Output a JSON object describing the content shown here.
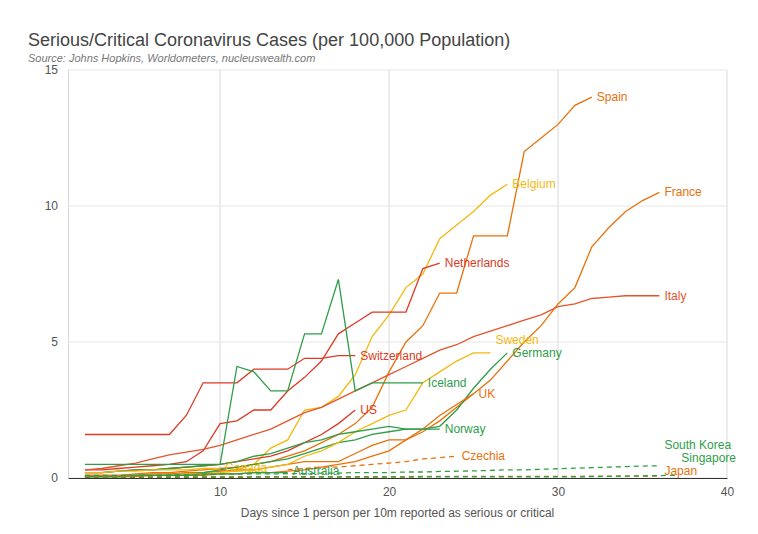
{
  "chart_data": {
    "type": "line",
    "title": "Serious/Critical Coronavirus Cases (per 100,000 Population)",
    "subtitle": "Source: Johns Hopkins, Worldometers, nucleuswealth.com",
    "x_label": "Days since 1 person per 10m reported as serious or critical",
    "x": [
      2,
      3,
      4,
      5,
      6,
      7,
      8,
      9,
      10,
      11,
      12,
      13,
      14,
      15,
      16,
      17,
      18,
      19,
      20,
      21,
      22,
      23,
      24,
      25,
      26,
      27,
      28,
      29,
      30,
      31,
      32,
      33,
      34,
      35,
      36,
      37
    ],
    "xlim": [
      1,
      40
    ],
    "xticks": [
      10,
      20,
      30,
      40
    ],
    "ylim": [
      0,
      15
    ],
    "yticks": [
      0,
      5,
      10,
      15
    ],
    "grid": true,
    "series": [
      {
        "name": "Spain",
        "color": "#e8710a",
        "line_style": "solid",
        "values": [
          0.1,
          0.1,
          0.1,
          0.15,
          0.2,
          0.2,
          0.25,
          0.3,
          0.35,
          0.4,
          0.5,
          0.6,
          0.8,
          1.0,
          1.3,
          1.6,
          2.0,
          2.6,
          3.9,
          5.0,
          5.6,
          6.8,
          6.8,
          8.9,
          8.9,
          8.9,
          12.0,
          12.5,
          13.0,
          13.7,
          14.0,
          null,
          null,
          null,
          null,
          null
        ]
      },
      {
        "name": "Belgium",
        "color": "#f2b90f",
        "line_style": "solid",
        "values": [
          0.05,
          0.05,
          0.05,
          0.1,
          0.1,
          0.1,
          0.15,
          0.2,
          0.25,
          0.3,
          0.5,
          1.1,
          1.4,
          2.5,
          2.6,
          3.0,
          3.8,
          5.2,
          6.0,
          7.0,
          7.5,
          8.8,
          9.3,
          9.8,
          10.4,
          10.8,
          null,
          null,
          null,
          null,
          null,
          null,
          null,
          null,
          null,
          null
        ]
      },
      {
        "name": "France",
        "color": "#e8710a",
        "line_style": "solid",
        "values": [
          0.1,
          0.1,
          0.1,
          0.1,
          0.15,
          0.15,
          0.2,
          0.2,
          0.25,
          0.3,
          0.3,
          0.4,
          0.5,
          0.6,
          0.6,
          0.6,
          0.9,
          1.2,
          1.4,
          1.4,
          1.7,
          2.1,
          2.6,
          3.1,
          3.6,
          4.3,
          5.0,
          5.6,
          6.4,
          7.0,
          8.5,
          9.2,
          9.8,
          10.2,
          10.5,
          null
        ]
      },
      {
        "name": "Netherlands",
        "color": "#dc3b26",
        "line_style": "solid",
        "values": [
          0.3,
          0.3,
          0.35,
          0.4,
          0.45,
          0.5,
          0.6,
          1.0,
          2.0,
          2.1,
          2.5,
          2.5,
          3.2,
          3.7,
          4.3,
          5.3,
          5.7,
          6.1,
          6.1,
          6.1,
          7.7,
          7.9,
          null,
          null,
          null,
          null,
          null,
          null,
          null,
          null,
          null,
          null,
          null,
          null,
          null,
          null
        ]
      },
      {
        "name": "Italy",
        "color": "#e4552b",
        "line_style": "solid",
        "values": [
          0.3,
          0.35,
          0.45,
          0.55,
          0.7,
          0.85,
          0.95,
          1.05,
          1.2,
          1.4,
          1.6,
          1.8,
          2.1,
          2.4,
          2.6,
          2.9,
          3.2,
          3.5,
          3.8,
          4.1,
          4.4,
          4.7,
          4.9,
          5.2,
          5.4,
          5.6,
          5.8,
          6.0,
          6.3,
          6.4,
          6.6,
          6.65,
          6.7,
          6.7,
          6.7,
          null
        ]
      },
      {
        "name": "Germany",
        "color": "#2e9e48",
        "line_style": "solid",
        "values": [
          0.05,
          0.05,
          0.05,
          0.1,
          0.1,
          0.1,
          0.15,
          0.2,
          0.3,
          0.4,
          0.5,
          0.6,
          0.7,
          0.9,
          1.1,
          1.3,
          1.4,
          1.6,
          1.7,
          1.8,
          1.8,
          1.9,
          2.5,
          3.3,
          4.0,
          4.6,
          null,
          null,
          null,
          null,
          null,
          null,
          null,
          null,
          null,
          null
        ]
      },
      {
        "name": "Switzerland",
        "color": "#dc3b26",
        "line_style": "solid",
        "values": [
          1.6,
          1.6,
          1.6,
          1.6,
          1.6,
          1.6,
          2.3,
          3.5,
          3.5,
          3.5,
          4.0,
          4.0,
          4.0,
          4.4,
          4.4,
          4.5,
          4.5,
          null,
          null,
          null,
          null,
          null,
          null,
          null,
          null,
          null,
          null,
          null,
          null,
          null,
          null,
          null,
          null,
          null,
          null,
          null
        ]
      },
      {
        "name": "Sweden",
        "color": "#f2b90f",
        "line_style": "solid",
        "values": [
          0.05,
          0.05,
          0.05,
          0.1,
          0.1,
          0.1,
          0.15,
          0.15,
          0.2,
          0.25,
          0.3,
          0.4,
          0.5,
          0.8,
          1.0,
          1.3,
          1.7,
          2.0,
          2.3,
          2.5,
          3.5,
          3.9,
          4.3,
          4.6,
          4.6,
          null,
          null,
          null,
          null,
          null,
          null,
          null,
          null,
          null,
          null,
          null
        ]
      },
      {
        "name": "Iceland",
        "color": "#2e9e48",
        "line_style": "solid",
        "values": [
          0.5,
          0.5,
          0.5,
          0.5,
          0.5,
          0.5,
          0.5,
          0.5,
          0.5,
          4.1,
          3.9,
          3.2,
          3.2,
          5.3,
          5.3,
          7.3,
          3.2,
          3.5,
          3.5,
          3.5,
          3.5,
          null,
          null,
          null,
          null,
          null,
          null,
          null,
          null,
          null,
          null,
          null,
          null,
          null,
          null,
          null
        ]
      },
      {
        "name": "UK",
        "color": "#e8710a",
        "line_style": "solid",
        "values": [
          0.05,
          0.05,
          0.05,
          0.05,
          0.1,
          0.1,
          0.1,
          0.1,
          0.15,
          0.15,
          0.2,
          0.2,
          0.25,
          0.3,
          0.4,
          0.5,
          0.6,
          0.8,
          1.0,
          1.4,
          1.8,
          2.3,
          2.7,
          3.1,
          null,
          null,
          null,
          null,
          null,
          null,
          null,
          null,
          null,
          null,
          null,
          null
        ]
      },
      {
        "name": "US",
        "color": "#dc3b26",
        "line_style": "solid",
        "values": [
          0.2,
          0.2,
          0.25,
          0.3,
          0.3,
          0.35,
          0.4,
          0.45,
          0.5,
          0.6,
          0.7,
          0.8,
          1.0,
          1.3,
          1.6,
          2.0,
          2.5,
          null,
          null,
          null,
          null,
          null,
          null,
          null,
          null,
          null,
          null,
          null,
          null,
          null,
          null,
          null,
          null,
          null,
          null,
          null
        ]
      },
      {
        "name": "Norway",
        "color": "#2e9e48",
        "line_style": "solid",
        "values": [
          0.2,
          0.2,
          0.25,
          0.3,
          0.3,
          0.35,
          0.4,
          0.45,
          0.5,
          0.6,
          0.8,
          0.9,
          1.1,
          1.3,
          1.4,
          1.6,
          1.7,
          1.8,
          1.9,
          1.8,
          1.8,
          1.8,
          null,
          null,
          null,
          null,
          null,
          null,
          null,
          null,
          null,
          null,
          null,
          null,
          null,
          null
        ]
      },
      {
        "name": "Czechia",
        "color": "#e8710a",
        "line_style": "dashed",
        "values": [
          null,
          null,
          null,
          null,
          null,
          null,
          null,
          null,
          null,
          null,
          null,
          null,
          0.3,
          0.35,
          0.4,
          0.4,
          0.45,
          0.5,
          0.55,
          0.6,
          0.7,
          0.75,
          0.8,
          null,
          null,
          null,
          null,
          null,
          null,
          null,
          null,
          null,
          null,
          null,
          null,
          null
        ]
      },
      {
        "name": "Canada",
        "color": "#f2b90f",
        "line_style": "solid",
        "values": [
          0.2,
          0.2,
          0.25,
          0.25,
          0.3,
          0.3,
          0.3,
          0.35,
          0.35,
          null,
          null,
          null,
          null,
          null,
          null,
          null,
          null,
          null,
          null,
          null,
          null,
          null,
          null,
          null,
          null,
          null,
          null,
          null,
          null,
          null,
          null,
          null,
          null,
          null,
          null,
          null
        ]
      },
      {
        "name": "Australia",
        "color": "#2e9e48",
        "line_style": "solid",
        "values": [
          0.05,
          0.05,
          0.05,
          0.1,
          0.1,
          0.1,
          0.1,
          0.15,
          0.15,
          0.15,
          0.2,
          0.2,
          0.2,
          null,
          null,
          null,
          null,
          null,
          null,
          null,
          null,
          null,
          null,
          null,
          null,
          null,
          null,
          null,
          null,
          null,
          null,
          null,
          null,
          null,
          null,
          null
        ]
      },
      {
        "name": "South Korea",
        "color": "#2e9e48",
        "line_style": "dashed",
        "values": [
          0.1,
          0.1,
          0.1,
          0.1,
          0.1,
          0.12,
          0.12,
          0.12,
          0.14,
          0.14,
          0.15,
          0.15,
          0.16,
          0.16,
          0.18,
          0.18,
          0.2,
          0.2,
          0.2,
          0.22,
          0.22,
          0.24,
          0.25,
          0.26,
          0.28,
          0.3,
          0.3,
          0.32,
          0.34,
          0.36,
          0.38,
          0.4,
          0.42,
          0.44,
          0.45,
          null
        ]
      },
      {
        "name": "Japan",
        "color": "#e8710a",
        "line_style": "dashed",
        "values": [
          0.05,
          0.05,
          0.05,
          0.05,
          0.05,
          0.05,
          0.05,
          0.05,
          0.05,
          0.05,
          0.05,
          0.05,
          0.05,
          0.05,
          0.05,
          0.05,
          0.05,
          0.05,
          0.05,
          0.05,
          0.06,
          0.06,
          0.06,
          0.06,
          0.06,
          0.06,
          0.06,
          0.06,
          0.06,
          0.06,
          0.07,
          0.07,
          0.07,
          0.07,
          0.07,
          null
        ]
      },
      {
        "name": "Singapore",
        "color": "#2e9e48",
        "line_style": "dashed",
        "values": [
          0.02,
          0.02,
          0.02,
          0.02,
          0.02,
          0.02,
          0.02,
          0.02,
          0.02,
          0.02,
          0.03,
          0.03,
          0.03,
          0.03,
          0.03,
          0.03,
          0.03,
          0.03,
          0.03,
          0.03,
          0.04,
          0.04,
          0.04,
          0.04,
          0.04,
          0.04,
          0.04,
          0.04,
          0.04,
          0.04,
          0.05,
          0.06,
          0.07,
          0.08,
          0.09,
          0.1
        ]
      }
    ]
  }
}
